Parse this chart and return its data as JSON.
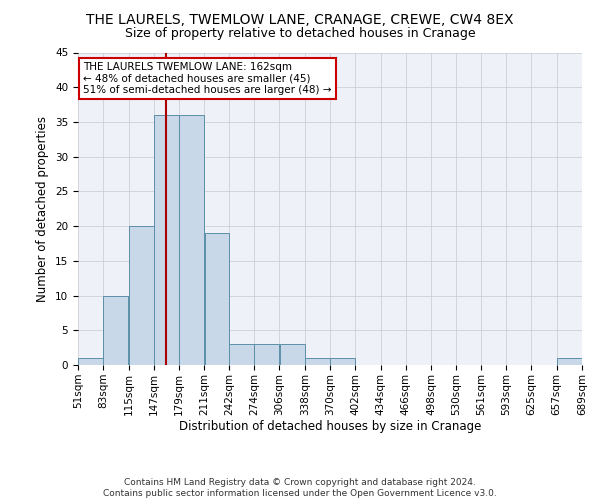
{
  "title": "THE LAURELS, TWEMLOW LANE, CRANAGE, CREWE, CW4 8EX",
  "subtitle": "Size of property relative to detached houses in Cranage",
  "xlabel": "Distribution of detached houses by size in Cranage",
  "ylabel": "Number of detached properties",
  "bin_edges": [
    51,
    83,
    115,
    147,
    179,
    211,
    242,
    274,
    306,
    338,
    370,
    402,
    434,
    466,
    498,
    530,
    561,
    593,
    625,
    657,
    689
  ],
  "bin_labels": [
    "51sqm",
    "83sqm",
    "115sqm",
    "147sqm",
    "179sqm",
    "211sqm",
    "242sqm",
    "274sqm",
    "306sqm",
    "338sqm",
    "370sqm",
    "402sqm",
    "434sqm",
    "466sqm",
    "498sqm",
    "530sqm",
    "561sqm",
    "593sqm",
    "625sqm",
    "657sqm",
    "689sqm"
  ],
  "counts": [
    1,
    10,
    20,
    36,
    36,
    19,
    3,
    3,
    3,
    1,
    1,
    0,
    0,
    0,
    0,
    0,
    0,
    0,
    0,
    1
  ],
  "bar_color": "#c8d8e8",
  "bar_edge_color": "#5b8fa8",
  "vline_x": 162,
  "vline_color": "#aa0000",
  "ylim": [
    0,
    45
  ],
  "yticks": [
    0,
    5,
    10,
    15,
    20,
    25,
    30,
    35,
    40,
    45
  ],
  "annotation_text": "THE LAURELS TWEMLOW LANE: 162sqm\n← 48% of detached houses are smaller (45)\n51% of semi-detached houses are larger (48) →",
  "annotation_box_color": "#ffffff",
  "annotation_border_color": "#cc0000",
  "footer_line1": "Contains HM Land Registry data © Crown copyright and database right 2024.",
  "footer_line2": "Contains public sector information licensed under the Open Government Licence v3.0.",
  "background_color": "#eef2f8",
  "grid_color": "#c8c8d0",
  "title_fontsize": 10,
  "subtitle_fontsize": 9,
  "axis_label_fontsize": 8.5,
  "tick_fontsize": 7.5,
  "annotation_fontsize": 7.5,
  "footer_fontsize": 6.5
}
